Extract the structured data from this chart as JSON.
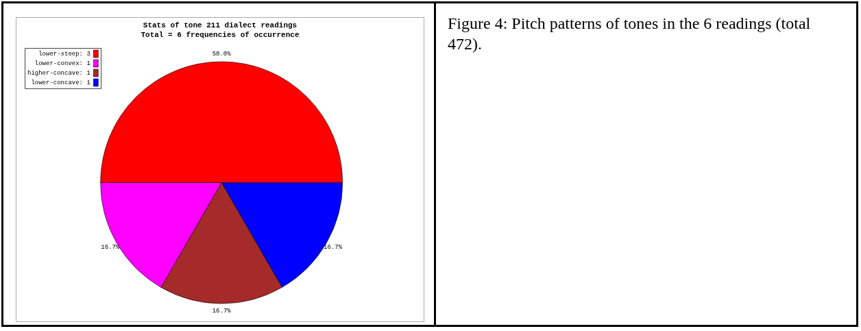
{
  "chart_data": {
    "type": "pie",
    "title": "Stats of tone 211 dialect readings",
    "subtitle": "Total = 6 frequencies of occurrence",
    "categories": [
      "lower-steep: 3",
      "lower-convex: 1",
      "higher-concave: 1",
      "lower-concave: 1"
    ],
    "values": [
      50,
      16.67,
      16.67,
      16.66
    ],
    "colors": [
      "#ff0000",
      "#ff00ff",
      "#a52a2a",
      "#0000ff"
    ],
    "value_labels": [
      "50.0%",
      "16.7%",
      "16.7%",
      "16.7%"
    ],
    "legend": "top left",
    "annotations": [
      "Figure 4: Pitch patterns of tones in the 6 readings (total 472)."
    ]
  }
}
